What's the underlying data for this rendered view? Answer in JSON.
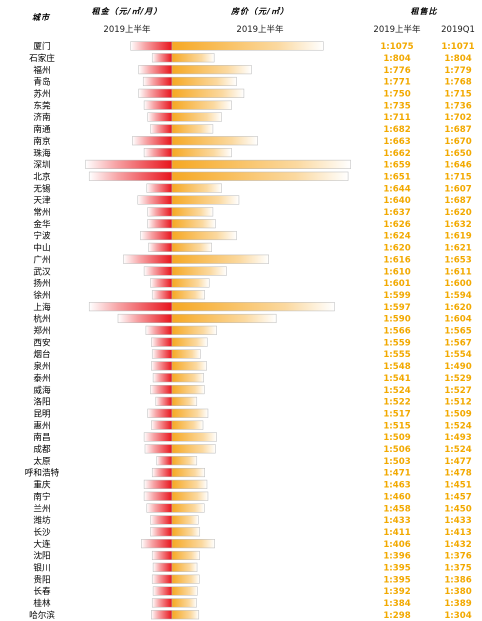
{
  "headers": {
    "city": "城市",
    "rent": "租金（元/㎡/月）",
    "price": "房价（元/㎡）",
    "ratio": "租售比"
  },
  "subheaders": {
    "rent": "2019上半年",
    "price": "2019上半年",
    "ratio_h1": "2019上半年",
    "ratio_q1": "2019Q1"
  },
  "colors": {
    "rent": "#e8141c",
    "price": "#f6a823",
    "ratio": "#f2a900"
  },
  "chart_data": {
    "type": "bar",
    "categories": [
      "厦门",
      "石家庄",
      "福州",
      "青岛",
      "苏州",
      "东莞",
      "济南",
      "南通",
      "南京",
      "珠海",
      "深圳",
      "北京",
      "无锡",
      "天津",
      "常州",
      "金华",
      "宁波",
      "中山",
      "广州",
      "武汉",
      "扬州",
      "徐州",
      "上海",
      "杭州",
      "郑州",
      "西安",
      "烟台",
      "泉州",
      "泰州",
      "威海",
      "洛阳",
      "昆明",
      "惠州",
      "南昌",
      "成都",
      "太原",
      "呼和浩特",
      "重庆",
      "南宁",
      "兰州",
      "潍坊",
      "长沙",
      "大连",
      "沈阳",
      "银川",
      "贵阳",
      "长春",
      "桂林",
      "哈尔滨"
    ],
    "series": [
      {
        "name": "租金（元/㎡/月）",
        "values": [
          46,
          22,
          37,
          32,
          37,
          31,
          27,
          24,
          44,
          31,
          96,
          92,
          28,
          38,
          27,
          27,
          35,
          26,
          54,
          31,
          24,
          22,
          92,
          60,
          29,
          23,
          22,
          23,
          21,
          24,
          18,
          27,
          23,
          31,
          30,
          17,
          22,
          31,
          31,
          28,
          24,
          24,
          34,
          22,
          21,
          22,
          21,
          22,
          23
        ]
      },
      {
        "name": "房价（元/㎡）",
        "values": [
          61000,
          17000,
          32000,
          26000,
          29000,
          24000,
          20000,
          16500,
          34500,
          24000,
          72000,
          71000,
          20000,
          27000,
          16500,
          17500,
          26000,
          16000,
          39000,
          22000,
          15000,
          13200,
          65500,
          42000,
          18000,
          14200,
          11500,
          14000,
          12800,
          13000,
          10000,
          14500,
          12500,
          18000,
          17500,
          10000,
          13200,
          14100,
          14500,
          13000,
          10600,
          11200,
          17200,
          11100,
          10100,
          11000,
          10200,
          9900,
          10800
        ]
      },
      {
        "name": "2019上半年",
        "values": [
          "1:1075",
          "1:804",
          "1:776",
          "1:771",
          "1:750",
          "1:735",
          "1:711",
          "1:682",
          "1:663",
          "1:662",
          "1:659",
          "1:651",
          "1:644",
          "1:640",
          "1:637",
          "1:626",
          "1:624",
          "1:620",
          "1:616",
          "1:610",
          "1:601",
          "1:599",
          "1:597",
          "1:590",
          "1:566",
          "1:559",
          "1:555",
          "1:548",
          "1:541",
          "1:524",
          "1:522",
          "1:517",
          "1:515",
          "1:509",
          "1:506",
          "1:503",
          "1:471",
          "1:463",
          "1:460",
          "1:458",
          "1:433",
          "1:411",
          "1:406",
          "1:396",
          "1:395",
          "1:395",
          "1:392",
          "1:384",
          "1:298"
        ]
      },
      {
        "name": "2019Q1",
        "values": [
          "1:1071",
          "1:804",
          "1:779",
          "1:768",
          "1:715",
          "1:736",
          "1:702",
          "1:687",
          "1:670",
          "1:650",
          "1:646",
          "1:715",
          "1:607",
          "1:687",
          "1:620",
          "1:632",
          "1:619",
          "1:621",
          "1:653",
          "1:611",
          "1:600",
          "1:594",
          "1:620",
          "1:604",
          "1:565",
          "1:567",
          "1:554",
          "1:490",
          "1:529",
          "1:527",
          "1:512",
          "1:509",
          "1:524",
          "1:493",
          "1:524",
          "1:477",
          "1:478",
          "1:451",
          "1:457",
          "1:450",
          "1:433",
          "1:413",
          "1:432",
          "1:376",
          "1:375",
          "1:386",
          "1:380",
          "1:389",
          "1:304"
        ]
      }
    ],
    "xlim_rent": [
      0,
      100
    ],
    "xlim_price": [
      0,
      75000
    ]
  }
}
